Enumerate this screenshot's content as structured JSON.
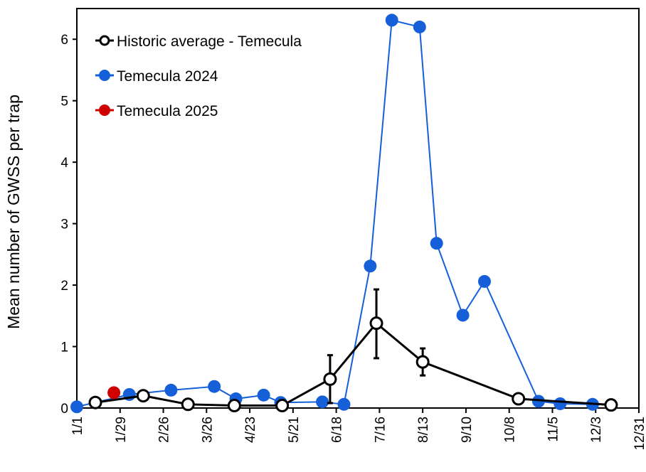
{
  "chart_data": {
    "type": "line",
    "title": "",
    "xlabel": "",
    "ylabel": "Mean number of GWSS per trap",
    "ylim": [
      0,
      6.5
    ],
    "yticks": [
      0,
      1,
      2,
      3,
      4,
      5,
      6
    ],
    "xticks": [
      "1/1",
      "1/29",
      "2/26",
      "3/26",
      "4/23",
      "5/21",
      "6/18",
      "7/16",
      "8/13",
      "9/10",
      "10/8",
      "11/5",
      "12/3",
      "12/31"
    ],
    "grid": false,
    "legend_position": "top-left",
    "series": [
      {
        "name": "Historic average - Temecula",
        "color": "#000000",
        "marker": "open-circle",
        "points": [
          {
            "x": "1/13",
            "y": 0.09
          },
          {
            "x": "2/13",
            "y": 0.2
          },
          {
            "x": "3/14",
            "y": 0.06
          },
          {
            "x": "4/13",
            "y": 0.04
          },
          {
            "x": "5/14",
            "y": 0.04
          },
          {
            "x": "6/14",
            "y": 0.47,
            "err_low": 0.08,
            "err_high": 0.86
          },
          {
            "x": "7/14",
            "y": 1.38,
            "err_low": 0.81,
            "err_high": 1.93
          },
          {
            "x": "8/13",
            "y": 0.75,
            "err_low": 0.53,
            "err_high": 0.97
          },
          {
            "x": "10/14",
            "y": 0.15
          },
          {
            "x": "12/13",
            "y": 0.05
          }
        ]
      },
      {
        "name": "Temecula 2024",
        "color": "#1560d8",
        "marker": "filled-circle",
        "points": [
          {
            "x": "1/1",
            "y": 0.02
          },
          {
            "x": "2/4",
            "y": 0.22
          },
          {
            "x": "3/3",
            "y": 0.29
          },
          {
            "x": "3/31",
            "y": 0.35
          },
          {
            "x": "4/14",
            "y": 0.15
          },
          {
            "x": "5/2",
            "y": 0.21
          },
          {
            "x": "5/13",
            "y": 0.09
          },
          {
            "x": "6/9",
            "y": 0.1
          },
          {
            "x": "6/23",
            "y": 0.06
          },
          {
            "x": "7/10",
            "y": 2.31
          },
          {
            "x": "7/24",
            "y": 6.31
          },
          {
            "x": "8/11",
            "y": 6.2
          },
          {
            "x": "8/22",
            "y": 2.68
          },
          {
            "x": "9/8",
            "y": 1.51
          },
          {
            "x": "9/22",
            "y": 2.06
          },
          {
            "x": "10/27",
            "y": 0.11
          },
          {
            "x": "11/10",
            "y": 0.07
          },
          {
            "x": "12/1",
            "y": 0.06
          }
        ]
      },
      {
        "name": "Temecula 2025",
        "color": "#d00000",
        "marker": "filled-circle",
        "points": [
          {
            "x": "1/25",
            "y": 0.25
          }
        ]
      }
    ]
  }
}
